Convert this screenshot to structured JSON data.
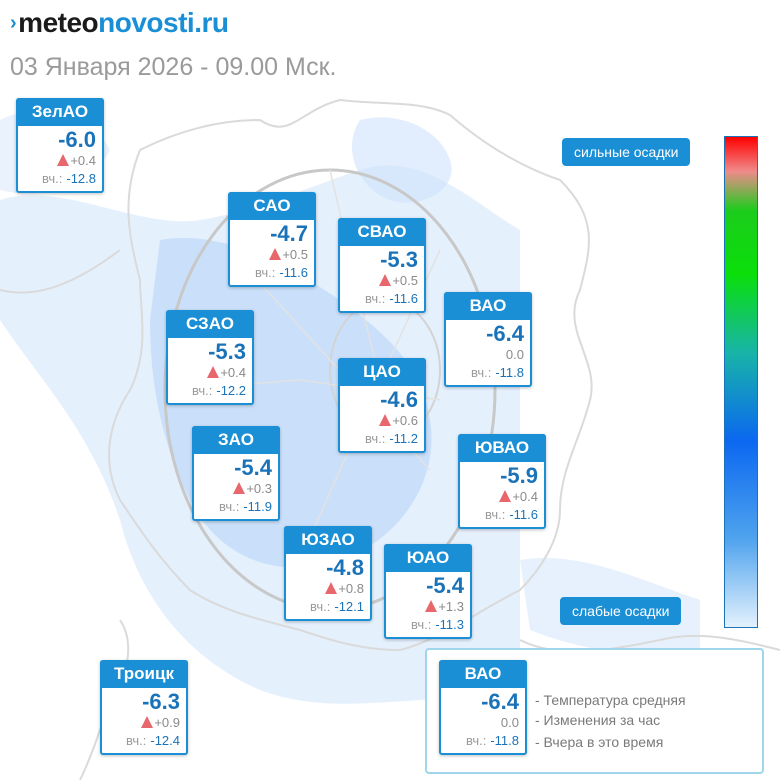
{
  "header": {
    "logo_prefix": "meteo",
    "logo_suffix": "novosti.ru",
    "subtitle": "03 Января 2026 - 09.00 Мск."
  },
  "yesterday_label": "вч.:",
  "districts": [
    {
      "name": "ЗелАО",
      "temp": "-6.0",
      "change": "+0.4",
      "trend": "up",
      "yesterday": "-12.8"
    },
    {
      "name": "САО",
      "temp": "-4.7",
      "change": "+0.5",
      "trend": "up",
      "yesterday": "-11.6"
    },
    {
      "name": "СВАО",
      "temp": "-5.3",
      "change": "+0.5",
      "trend": "up",
      "yesterday": "-11.6"
    },
    {
      "name": "СЗАО",
      "temp": "-5.3",
      "change": "+0.4",
      "trend": "up",
      "yesterday": "-12.2"
    },
    {
      "name": "ВАО",
      "temp": "-6.4",
      "change": "0.0",
      "trend": "none",
      "yesterday": "-11.8"
    },
    {
      "name": "ЦАО",
      "temp": "-4.6",
      "change": "+0.6",
      "trend": "up",
      "yesterday": "-11.2"
    },
    {
      "name": "ЗАО",
      "temp": "-5.4",
      "change": "+0.3",
      "trend": "up",
      "yesterday": "-11.9"
    },
    {
      "name": "ЮВАО",
      "temp": "-5.9",
      "change": "+0.4",
      "trend": "up",
      "yesterday": "-11.6"
    },
    {
      "name": "ЮЗАО",
      "temp": "-4.8",
      "change": "+0.8",
      "trend": "up",
      "yesterday": "-12.1"
    },
    {
      "name": "ЮАО",
      "temp": "-5.4",
      "change": "+1.3",
      "trend": "up",
      "yesterday": "-11.3"
    },
    {
      "name": "Троицк",
      "temp": "-6.3",
      "change": "+0.9",
      "trend": "up",
      "yesterday": "-12.4"
    }
  ],
  "scale": {
    "top_label": "сильные осадки",
    "bottom_label": "слабые осадки"
  },
  "legend": {
    "sample": {
      "name": "ВАО",
      "temp": "-6.4",
      "change": "0.0",
      "yesterday": "-11.8"
    },
    "lines": [
      "- Температура средняя",
      "- Изменения за час",
      "- Вчера в это время"
    ]
  },
  "colors": {
    "accent": "#1a8fd6",
    "temperature": "#1a73b8",
    "trend_up": "#e8676c"
  }
}
